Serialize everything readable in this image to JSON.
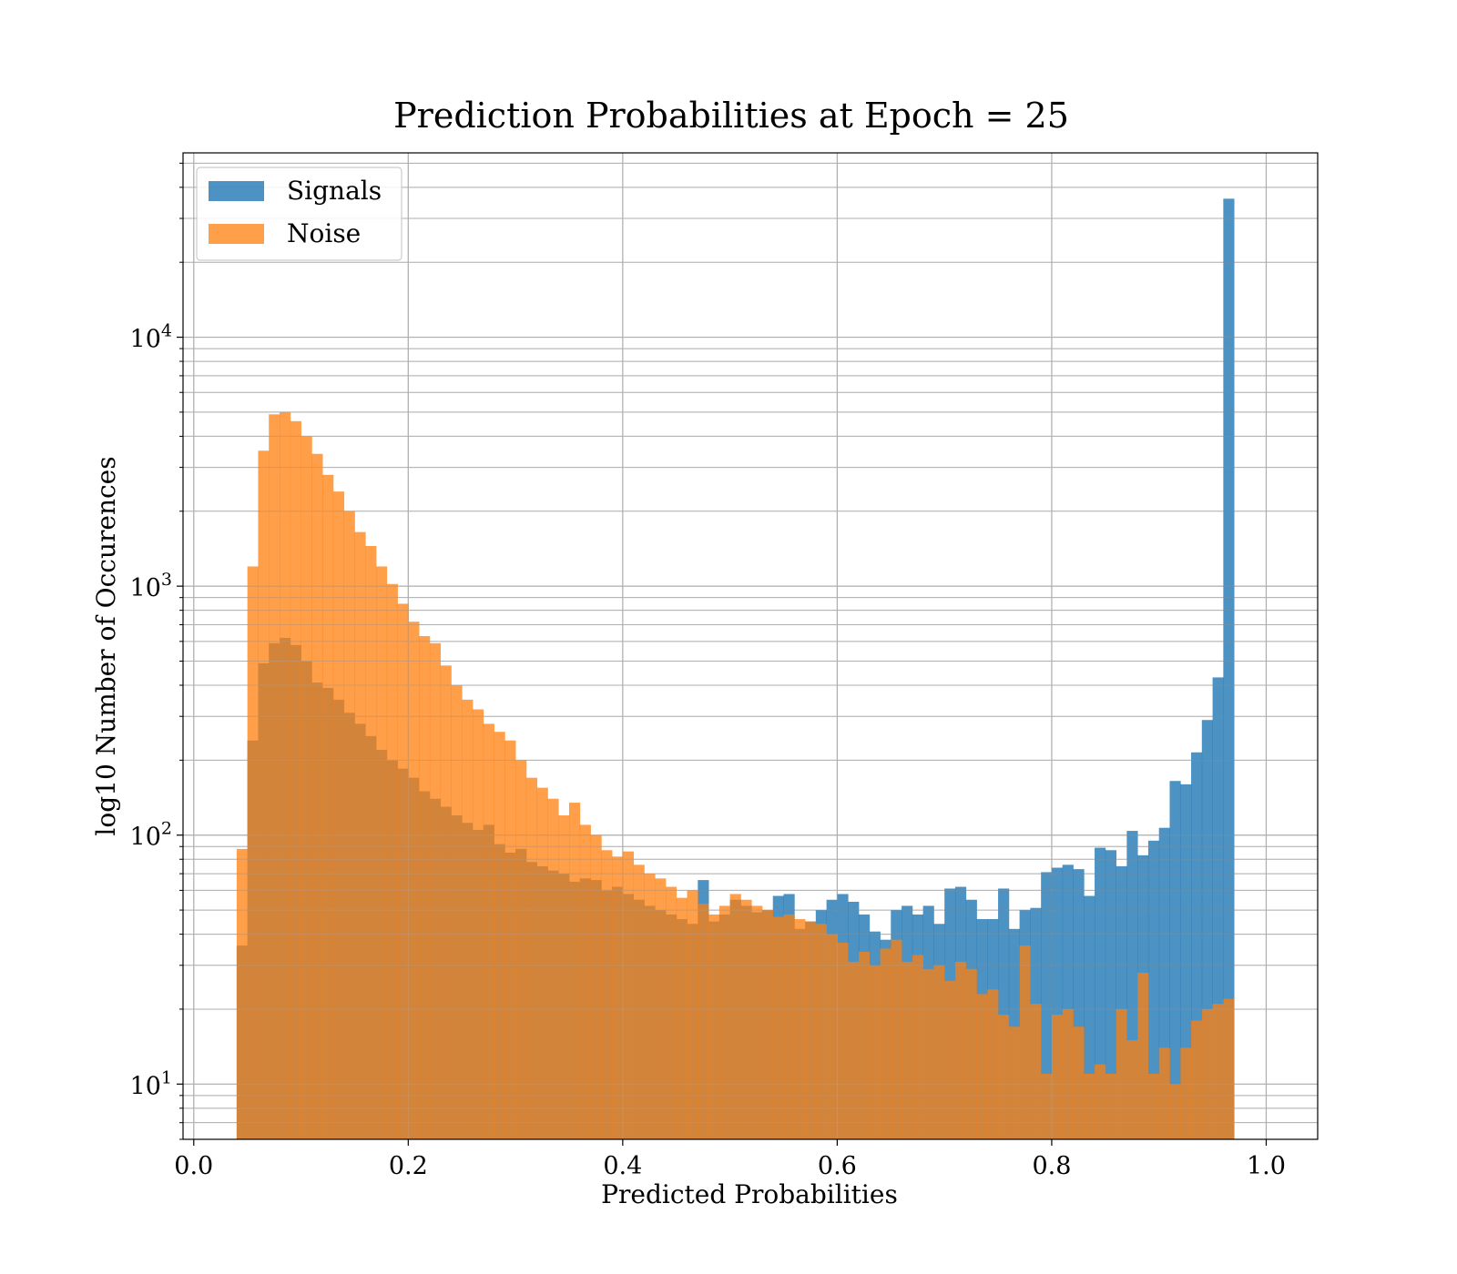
{
  "chart_data": {
    "type": "bar",
    "title": "Prediction Probabilities at Epoch = 25",
    "xlabel": "Predicted Probabilities",
    "ylabel": "log10 Number of Occurences",
    "xlim": [
      -0.01,
      1.048
    ],
    "ylim": [
      6.0,
      55000
    ],
    "yscale": "log",
    "grid": true,
    "legend_position": "top-left",
    "x_ticks": [
      0.0,
      0.2,
      0.4,
      0.6,
      0.8,
      1.0
    ],
    "x_tick_labels": [
      "0.0",
      "0.2",
      "0.4",
      "0.6",
      "0.8",
      "1.0"
    ],
    "y_ticks": [
      10,
      100,
      1000,
      10000
    ],
    "y_tick_bases": [
      "10",
      "10",
      "10",
      "10"
    ],
    "y_tick_exponents": [
      "1",
      "2",
      "3",
      "4"
    ],
    "bin_width": 0.01,
    "series": [
      {
        "name": "Signals",
        "color": "#1f77b4",
        "opacity": 0.8,
        "bin_start": 0.04,
        "values": [
          36,
          240,
          490,
          590,
          620,
          580,
          500,
          410,
          390,
          350,
          310,
          280,
          250,
          220,
          200,
          185,
          170,
          150,
          140,
          130,
          120,
          112,
          105,
          110,
          92,
          85,
          88,
          78,
          75,
          72,
          70,
          65,
          67,
          66,
          60,
          62,
          58,
          55,
          52,
          50,
          48,
          46,
          44,
          66,
          45,
          48,
          55,
          52,
          49,
          50,
          57,
          58,
          42,
          45,
          50,
          55,
          58,
          54,
          48,
          41,
          38,
          50,
          52,
          48,
          52,
          44,
          61,
          62,
          55,
          46,
          46,
          61,
          42,
          50,
          51,
          71,
          74,
          76,
          73,
          57,
          89,
          87,
          75,
          104,
          83,
          95,
          107,
          165,
          160,
          215,
          290,
          430,
          36000
        ]
      },
      {
        "name": "Noise",
        "color": "#ff7f0e",
        "opacity": 0.75,
        "bin_start": 0.04,
        "values": [
          88,
          1200,
          3500,
          4900,
          5000,
          4600,
          4000,
          3400,
          2800,
          2400,
          2000,
          1650,
          1450,
          1200,
          1020,
          850,
          720,
          630,
          590,
          480,
          400,
          350,
          320,
          280,
          260,
          240,
          200,
          170,
          155,
          140,
          120,
          135,
          110,
          100,
          87,
          82,
          86,
          76,
          70,
          67,
          62,
          56,
          60,
          53,
          48,
          52,
          58,
          55,
          52,
          50,
          47,
          48,
          46,
          45,
          44,
          40,
          37,
          31,
          34,
          30,
          35,
          38,
          31,
          33,
          29,
          30,
          26,
          31,
          29,
          23,
          24,
          19,
          17,
          36,
          21,
          11,
          19,
          20,
          17,
          11,
          12,
          11,
          20,
          15,
          28,
          11,
          14,
          10,
          14,
          18,
          20,
          21,
          22
        ]
      }
    ]
  }
}
